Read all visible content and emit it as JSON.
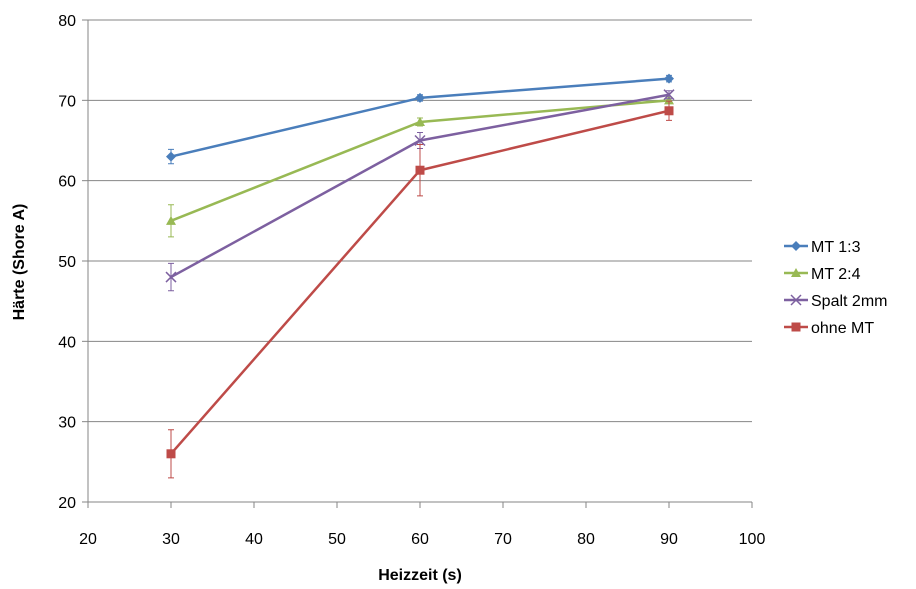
{
  "chart_data": {
    "type": "line",
    "xlabel": "Heizzeit (s)",
    "ylabel": "Härte (Shore A)",
    "xlim": [
      20,
      100
    ],
    "ylim": [
      20,
      80
    ],
    "xticks": [
      "20",
      "30",
      "40",
      "50",
      "60",
      "70",
      "80",
      "90",
      "100"
    ],
    "yticks": [
      "20",
      "30",
      "40",
      "50",
      "60",
      "70",
      "80"
    ],
    "grid": "horizontal",
    "legend_position": "right",
    "series": [
      {
        "name": "MT 1:3",
        "color": "#4a7ebb",
        "marker": "diamond",
        "x": [
          30,
          60,
          90
        ],
        "y": [
          63,
          70.3,
          72.7
        ],
        "err": [
          0.9,
          0.4,
          0.4
        ]
      },
      {
        "name": "MT 2:4",
        "color": "#98b954",
        "marker": "triangle",
        "x": [
          30,
          60,
          90
        ],
        "y": [
          55,
          67.3,
          70
        ],
        "err": [
          2,
          0.5,
          0.4
        ]
      },
      {
        "name": "Spalt 2mm",
        "color": "#7d60a0",
        "marker": "x",
        "x": [
          30,
          60,
          90
        ],
        "y": [
          48,
          65,
          70.7
        ],
        "err": [
          1.7,
          1,
          0.5
        ]
      },
      {
        "name": "ohne MT",
        "color": "#be4b48",
        "marker": "square",
        "x": [
          30,
          60,
          90
        ],
        "y": [
          26,
          61.3,
          68.7
        ],
        "err": [
          3,
          3.2,
          1.2
        ]
      }
    ]
  }
}
